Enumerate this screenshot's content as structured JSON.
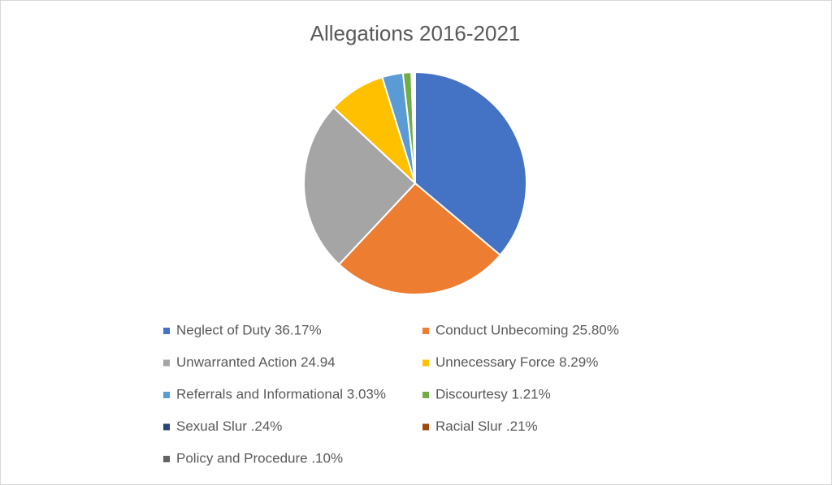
{
  "chart_data": {
    "type": "pie",
    "title": "Allegations 2016-2021",
    "categories": [
      "Neglect of Duty 36.17%",
      "Conduct Unbecoming 25.80%",
      "Unwarranted Action 24.94",
      "Unnecessary Force 8.29%",
      "Referrals and Informational 3.03%",
      "Discourtesy 1.21%",
      "Sexual Slur .24%",
      "Racial Slur .21%",
      "Policy and Procedure .10%"
    ],
    "values": [
      36.17,
      25.8,
      24.94,
      8.29,
      3.03,
      1.21,
      0.24,
      0.21,
      0.1
    ],
    "colors": [
      "#4472c4",
      "#ed7d31",
      "#a5a5a5",
      "#ffc000",
      "#5b9bd5",
      "#70ad47",
      "#264478",
      "#9e480e",
      "#636363"
    ]
  }
}
